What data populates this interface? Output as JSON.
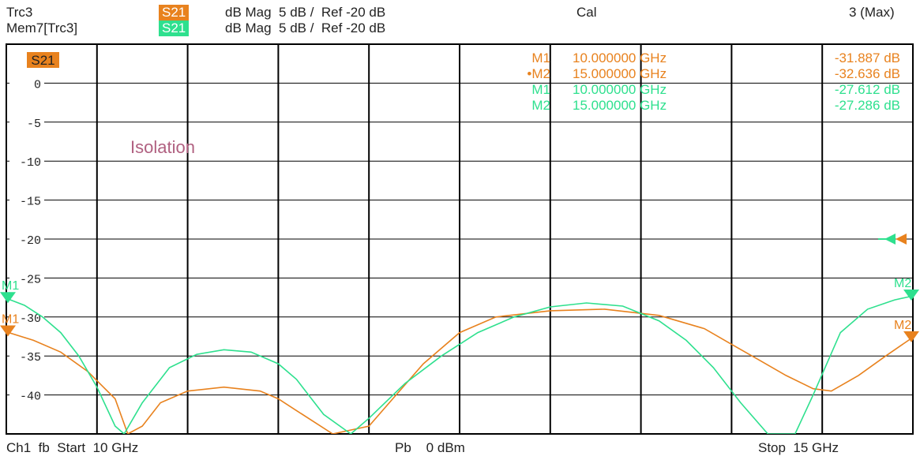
{
  "header": {
    "trace1_name": "Trc3",
    "trace1_param": "S21",
    "trace1_format": "dB Mag  5 dB /  Ref -20 dB",
    "trace2_name": "Mem7[Trc3]",
    "trace2_param": "S21",
    "trace2_format": "dB Mag  5 dB /  Ref -20 dB",
    "cal": "Cal",
    "avg": "3 (Max)"
  },
  "footer": {
    "channel": "Ch1  fb  Start  10 GHz",
    "power": "Pb    0 dBm",
    "stop": "Stop  15 GHz"
  },
  "colors": {
    "trace_orange": "#e8821e",
    "trace_green": "#2ee08e",
    "grid": "#000000",
    "annotation": "#b06080"
  },
  "chart_data": {
    "type": "line",
    "box_label": "S21",
    "annotation": "Isolation",
    "xlim": [
      10,
      15
    ],
    "ylim": [
      -45,
      5
    ],
    "x_divisions": 10,
    "yticks": [
      0,
      -5,
      -10,
      -15,
      -20,
      -25,
      -30,
      -35,
      -40
    ],
    "ytick_labels": [
      "0",
      "-5",
      "-10",
      "-15",
      "-20",
      "-25",
      "-30",
      "-35",
      "-40"
    ],
    "ref_level": -20,
    "series": [
      {
        "name": "Trc3",
        "color": "#e8821e",
        "x": [
          10.0,
          10.15,
          10.3,
          10.45,
          10.6,
          10.67,
          10.75,
          10.85,
          11.0,
          11.2,
          11.4,
          11.5,
          11.6,
          11.8,
          12.0,
          12.15,
          12.3,
          12.5,
          12.7,
          13.0,
          13.3,
          13.6,
          13.85,
          14.0,
          14.15,
          14.3,
          14.45,
          14.55,
          14.7,
          14.85,
          15.0
        ],
        "y": [
          -31.9,
          -33.0,
          -34.5,
          -37.0,
          -40.5,
          -45.0,
          -44.0,
          -41.0,
          -39.5,
          -39.0,
          -39.5,
          -40.5,
          -42.0,
          -45.0,
          -44.0,
          -40.0,
          -36.0,
          -32.0,
          -30.0,
          -29.2,
          -29.0,
          -29.8,
          -31.5,
          -33.5,
          -35.5,
          -37.5,
          -39.2,
          -39.5,
          -37.5,
          -35.0,
          -32.6
        ]
      },
      {
        "name": "Mem7[Trc3]",
        "color": "#2ee08e",
        "x": [
          10.0,
          10.1,
          10.2,
          10.3,
          10.4,
          10.5,
          10.6,
          10.65,
          10.75,
          10.9,
          11.05,
          11.2,
          11.35,
          11.5,
          11.6,
          11.75,
          11.9,
          12.0,
          12.2,
          12.4,
          12.6,
          12.8,
          13.0,
          13.2,
          13.4,
          13.6,
          13.75,
          13.9,
          14.05,
          14.2,
          14.35,
          14.45,
          14.6,
          14.75,
          14.9,
          15.0
        ],
        "y": [
          -27.6,
          -28.5,
          -30.0,
          -32.0,
          -35.0,
          -39.0,
          -44.0,
          -45.0,
          -41.0,
          -36.5,
          -34.8,
          -34.2,
          -34.5,
          -36.0,
          -38.0,
          -42.5,
          -45.0,
          -43.0,
          -38.5,
          -35.0,
          -32.0,
          -30.0,
          -28.7,
          -28.2,
          -28.6,
          -30.5,
          -33.0,
          -36.5,
          -41.0,
          -45.0,
          -45.0,
          -40.0,
          -32.0,
          -29.0,
          -27.8,
          -27.3
        ]
      }
    ],
    "markers": [
      {
        "trace": "Trc3",
        "label": "M1",
        "active": false,
        "freq": "10.000000 GHz",
        "value": "-31.887 dB",
        "x": 10.0,
        "y": -31.887
      },
      {
        "trace": "Trc3",
        "label": "M2",
        "active": true,
        "freq": "15.000000 GHz",
        "value": "-32.636 dB",
        "x": 15.0,
        "y": -32.636
      },
      {
        "trace": "Mem7[Trc3]",
        "label": "M1",
        "active": false,
        "freq": "10.000000 GHz",
        "value": "-27.612 dB",
        "x": 10.0,
        "y": -27.612
      },
      {
        "trace": "Mem7[Trc3]",
        "label": "M2",
        "active": false,
        "freq": "15.000000 GHz",
        "value": "-27.286 dB",
        "x": 15.0,
        "y": -27.286
      }
    ]
  }
}
